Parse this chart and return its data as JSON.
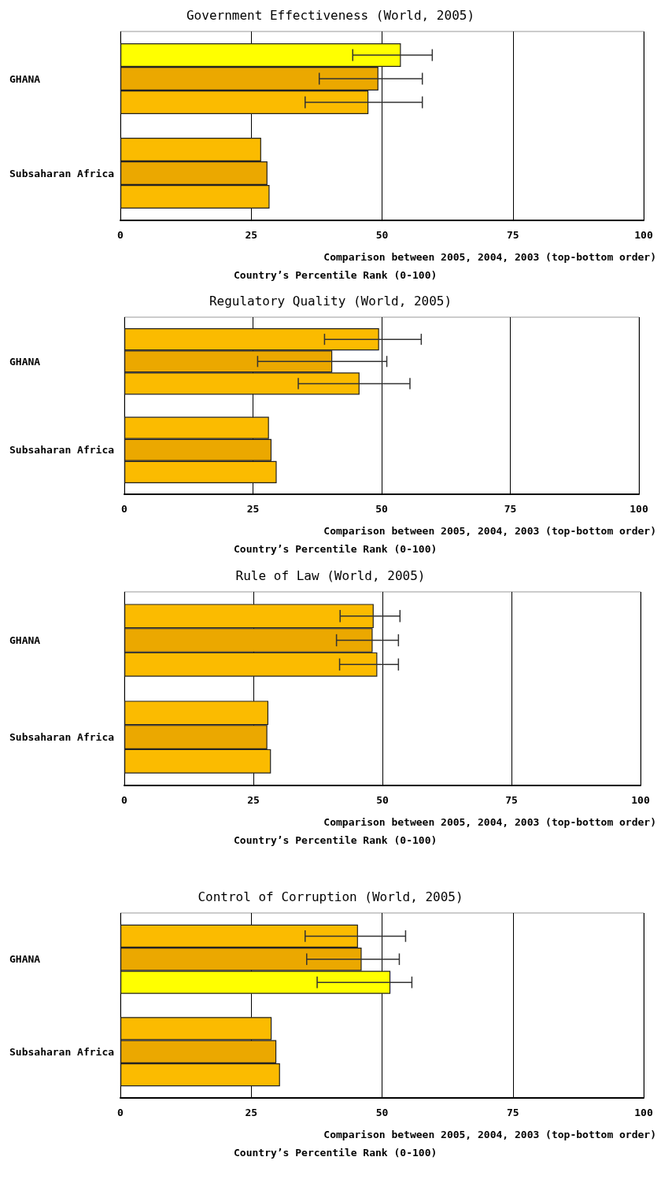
{
  "chart_data": [
    {
      "type": "bar",
      "orientation": "horizontal",
      "title": "Government Effectiveness (World, 2005)",
      "xlabel": "Comparison between 2005, 2004, 2003 (top-bottom order)",
      "annotations": [
        "Country’s Percentile Rank (0-100)"
      ],
      "categories": [
        "GHANA",
        "Subsaharan Africa"
      ],
      "xlim": [
        0,
        100
      ],
      "xticks": [
        0,
        25,
        50,
        75,
        100
      ],
      "grid": "x",
      "series": [
        {
          "colors": [
            "#ffff00",
            "#fbbb00"
          ],
          "values": [
            53.6,
            26.9
          ],
          "errors": [
            [
              44.4,
              59.6
            ],
            null
          ]
        },
        {
          "colors": [
            "#eba800",
            "#eba800"
          ],
          "values": [
            49.3,
            28.1
          ],
          "errors": [
            [
              38.0,
              57.7
            ],
            null
          ]
        },
        {
          "colors": [
            "#fbbb00",
            "#fbbb00"
          ],
          "values": [
            47.4,
            28.5
          ],
          "errors": [
            [
              35.3,
              57.7
            ],
            null
          ]
        }
      ]
    },
    {
      "type": "bar",
      "orientation": "horizontal",
      "title": "Regulatory Quality (World, 2005)",
      "xlabel": "Comparison between 2005, 2004, 2003 (top-bottom order)",
      "annotations": [
        "Country’s Percentile Rank (0-100)"
      ],
      "categories": [
        "GHANA",
        "Subsaharan Africa"
      ],
      "xlim": [
        0,
        100
      ],
      "xticks": [
        0,
        25,
        50,
        75,
        100
      ],
      "grid": "x",
      "series": [
        {
          "colors": [
            "#fbbb00",
            "#fbbb00"
          ],
          "values": [
            49.5,
            28.1
          ],
          "errors": [
            [
              38.9,
              57.7
            ],
            null
          ]
        },
        {
          "colors": [
            "#eba800",
            "#eba800"
          ],
          "values": [
            40.4,
            28.6
          ],
          "errors": [
            [
              25.9,
              51.0
            ],
            null
          ]
        },
        {
          "colors": [
            "#fbbb00",
            "#fbbb00"
          ],
          "values": [
            45.7,
            29.6
          ],
          "errors": [
            [
              33.8,
              55.5
            ],
            null
          ]
        }
      ]
    },
    {
      "type": "bar",
      "orientation": "horizontal",
      "title": "Rule of Law (World, 2005)",
      "xlabel": "Comparison between 2005, 2004, 2003 (top-bottom order)",
      "annotations": [
        "Country’s Percentile Rank (0-100)"
      ],
      "categories": [
        "GHANA",
        "Subsaharan Africa"
      ],
      "xlim": [
        0,
        100
      ],
      "xticks": [
        0,
        25,
        50,
        75,
        100
      ],
      "grid": "x",
      "series": [
        {
          "colors": [
            "#fbbb00",
            "#fbbb00"
          ],
          "values": [
            48.3,
            27.9
          ],
          "errors": [
            [
              41.8,
              53.4
            ],
            null
          ]
        },
        {
          "colors": [
            "#eba800",
            "#eba800"
          ],
          "values": [
            48.1,
            27.7
          ],
          "errors": [
            [
              41.1,
              53.1
            ],
            null
          ]
        },
        {
          "colors": [
            "#fbbb00",
            "#fbbb00"
          ],
          "values": [
            49.0,
            28.4
          ],
          "errors": [
            [
              41.7,
              53.1
            ],
            null
          ]
        }
      ]
    },
    {
      "type": "bar",
      "orientation": "horizontal",
      "title": "Control of Corruption (World, 2005)",
      "xlabel": "Comparison between 2005, 2004, 2003 (top-bottom order)",
      "annotations": [
        "Country’s Percentile Rank (0-100)"
      ],
      "categories": [
        "GHANA",
        "Subsaharan Africa"
      ],
      "xlim": [
        0,
        100
      ],
      "xticks": [
        0,
        25,
        50,
        75,
        100
      ],
      "grid": "x",
      "series": [
        {
          "colors": [
            "#fbbb00",
            "#fbbb00"
          ],
          "values": [
            45.4,
            28.9
          ],
          "errors": [
            [
              35.3,
              54.5
            ],
            null
          ]
        },
        {
          "colors": [
            "#eba800",
            "#eba800"
          ],
          "values": [
            46.1,
            29.8
          ],
          "errors": [
            [
              35.6,
              53.3
            ],
            null
          ]
        },
        {
          "colors": [
            "#ffff00",
            "#fbbb00"
          ],
          "values": [
            51.6,
            30.5
          ],
          "errors": [
            [
              37.6,
              55.7
            ],
            null
          ]
        }
      ]
    }
  ]
}
